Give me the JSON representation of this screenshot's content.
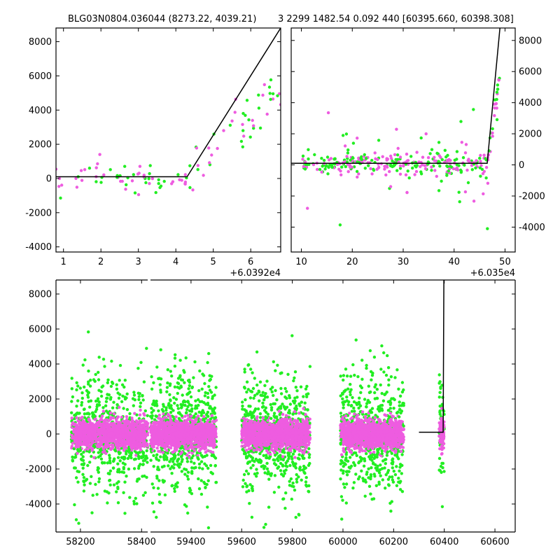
{
  "title_left": "BLG03N0804.036044 (8273.22, 4039.21)",
  "title_right": "3 2299 1482.54 0.092 440 [60395.660, 60398.308]",
  "colors": {
    "magenta": "#ee5ce0",
    "green": "#22ee22",
    "line": "#000000"
  },
  "chart_data": [
    {
      "id": "top-left",
      "type": "scatter",
      "xlim": [
        0.8,
        6.8
      ],
      "ylim": [
        -4300,
        8800
      ],
      "x_offset_label": "+6.0392e4",
      "xticks": [
        1,
        2,
        3,
        4,
        5,
        6
      ],
      "yticks": [
        -4000,
        -2000,
        0,
        2000,
        4000,
        6000,
        8000
      ],
      "ytick_side": "left",
      "model_line": [
        [
          0.8,
          100
        ],
        [
          4.3,
          100
        ],
        [
          6.8,
          8800
        ]
      ]
    },
    {
      "id": "top-right",
      "type": "scatter",
      "xlim": [
        8,
        52
      ],
      "ylim": [
        -5600,
        8800
      ],
      "x_offset_label": "+6.035e4",
      "xticks": [
        10,
        20,
        30,
        40,
        50
      ],
      "yticks": [
        -4000,
        -2000,
        0,
        2000,
        4000,
        6000,
        8000
      ],
      "ytick_side": "right",
      "model_line": [
        [
          8,
          100
        ],
        [
          46.5,
          100
        ],
        [
          49,
          8800
        ]
      ]
    },
    {
      "id": "bottom",
      "type": "scatter",
      "xlim": [
        58120,
        60680
      ],
      "ylim": [
        -5600,
        8800
      ],
      "xticks": [
        58200,
        58400,
        59400,
        59600,
        59800,
        60000,
        60200,
        60400,
        60600
      ],
      "yticks": [
        -4000,
        -2000,
        0,
        2000,
        4000,
        6000,
        8000
      ],
      "ytick_side": "left",
      "axis_break": [
        58420,
        59240
      ],
      "model_line": [
        [
          60300,
          100
        ],
        [
          60395.7,
          100
        ],
        [
          60398.3,
          8800
        ]
      ],
      "seasons": [
        {
          "start": 58170,
          "end": 58420
        },
        {
          "start": 59240,
          "end": 59500
        },
        {
          "start": 59600,
          "end": 59870
        },
        {
          "start": 59990,
          "end": 60240
        },
        {
          "start": 60380,
          "end": 60400
        }
      ]
    }
  ]
}
